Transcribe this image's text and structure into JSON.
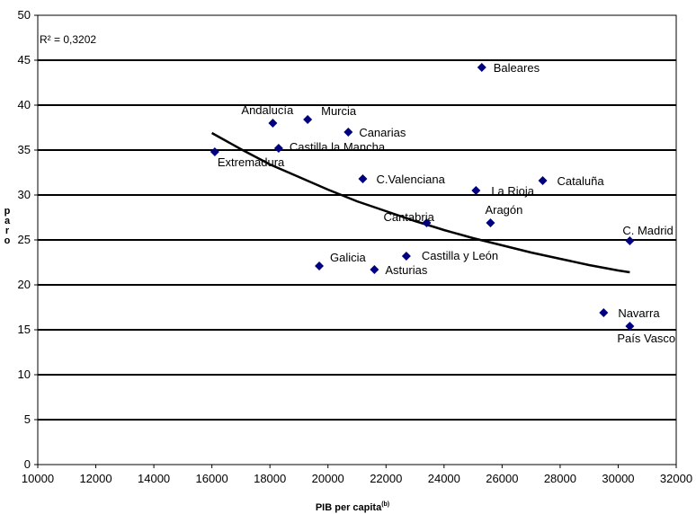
{
  "chart_data": {
    "type": "scatter",
    "title": "",
    "xlabel": "PIB per capita",
    "xlabel_superscript": "(b)",
    "ylabel": "paro",
    "xlim": [
      10000,
      32000
    ],
    "ylim": [
      0,
      50
    ],
    "xticks": [
      10000,
      12000,
      14000,
      16000,
      18000,
      20000,
      22000,
      24000,
      26000,
      28000,
      30000,
      32000
    ],
    "yticks": [
      0,
      5,
      10,
      15,
      20,
      25,
      30,
      35,
      40,
      45,
      50
    ],
    "grid": "horizontal",
    "annotation": "R² = 0,3202",
    "marker_color": "#000080",
    "trendline_color": "#000000",
    "points": [
      {
        "label": "Baleares",
        "x": 25300,
        "y": 44.2
      },
      {
        "label": "Andalucía",
        "x": 18100,
        "y": 38.0
      },
      {
        "label": "Murcia",
        "x": 19300,
        "y": 38.4
      },
      {
        "label": "Canarias",
        "x": 20700,
        "y": 37.0
      },
      {
        "label": "Castilla la Mancha",
        "x": 18300,
        "y": 35.2
      },
      {
        "label": "Extremadura",
        "x": 16100,
        "y": 34.8
      },
      {
        "label": "C.Valenciana",
        "x": 21200,
        "y": 31.8
      },
      {
        "label": "Cataluña",
        "x": 27400,
        "y": 31.6
      },
      {
        "label": "La Rioja",
        "x": 25100,
        "y": 30.5
      },
      {
        "label": "Cantabria",
        "x": 23400,
        "y": 26.9
      },
      {
        "label": "Aragón",
        "x": 25600,
        "y": 26.9
      },
      {
        "label": "C. Madrid",
        "x": 30400,
        "y": 24.9
      },
      {
        "label": "Castilla y León",
        "x": 22700,
        "y": 23.2
      },
      {
        "label": "Galicia",
        "x": 19700,
        "y": 22.1
      },
      {
        "label": "Asturias",
        "x": 21600,
        "y": 21.7
      },
      {
        "label": "Navarra",
        "x": 29500,
        "y": 16.9
      },
      {
        "label": "País Vasco",
        "x": 30400,
        "y": 15.4
      }
    ],
    "trendline": {
      "type": "power",
      "points": [
        [
          16000,
          36.9
        ],
        [
          17000,
          35.1
        ],
        [
          18000,
          33.4
        ],
        [
          19000,
          32.0
        ],
        [
          20000,
          30.6
        ],
        [
          21000,
          29.3
        ],
        [
          22000,
          28.2
        ],
        [
          23000,
          27.1
        ],
        [
          24000,
          26.1
        ],
        [
          25000,
          25.2
        ],
        [
          26000,
          24.4
        ],
        [
          27000,
          23.6
        ],
        [
          28000,
          22.9
        ],
        [
          29000,
          22.2
        ],
        [
          30000,
          21.6
        ],
        [
          30400,
          21.4
        ]
      ]
    }
  }
}
